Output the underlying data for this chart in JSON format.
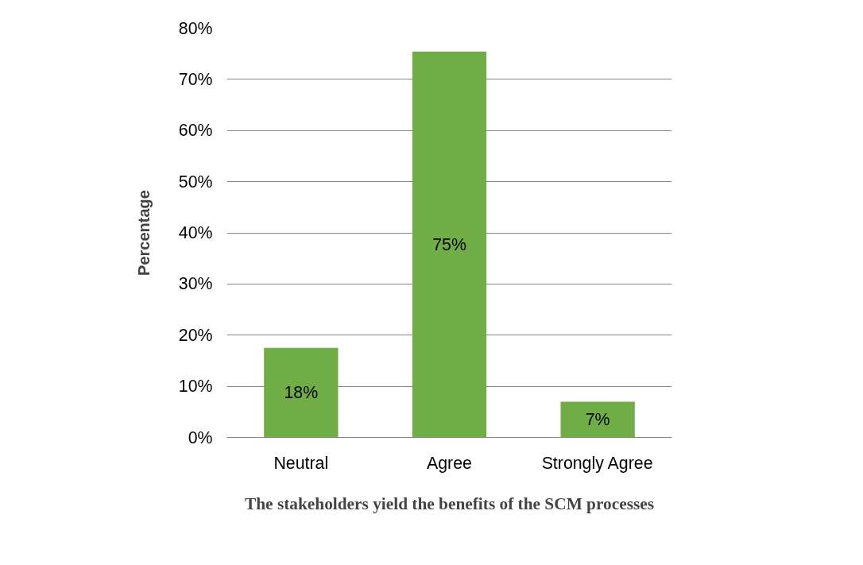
{
  "chart_data": {
    "type": "bar",
    "title": "The stakeholders yield the benefits of the SCM processes",
    "ylabel": "Percentage",
    "categories": [
      "Neutral",
      "Agree",
      "Strongly Agree"
    ],
    "values": [
      17.5,
      75.4,
      7
    ],
    "value_labels": [
      "18%",
      "75%",
      "7%"
    ],
    "color": "#70ad47",
    "ylim": [
      0,
      80
    ],
    "yticks": [
      {
        "value": 0,
        "label": "0%"
      },
      {
        "value": 10,
        "label": "10%"
      },
      {
        "value": 20,
        "label": "20%"
      },
      {
        "value": 30,
        "label": "30%"
      },
      {
        "value": 40,
        "label": "40%"
      },
      {
        "value": 50,
        "label": "50%"
      },
      {
        "value": 60,
        "label": "60%"
      },
      {
        "value": 70,
        "label": "70%"
      },
      {
        "value": 80,
        "label": "80%"
      }
    ],
    "grid": "y"
  }
}
